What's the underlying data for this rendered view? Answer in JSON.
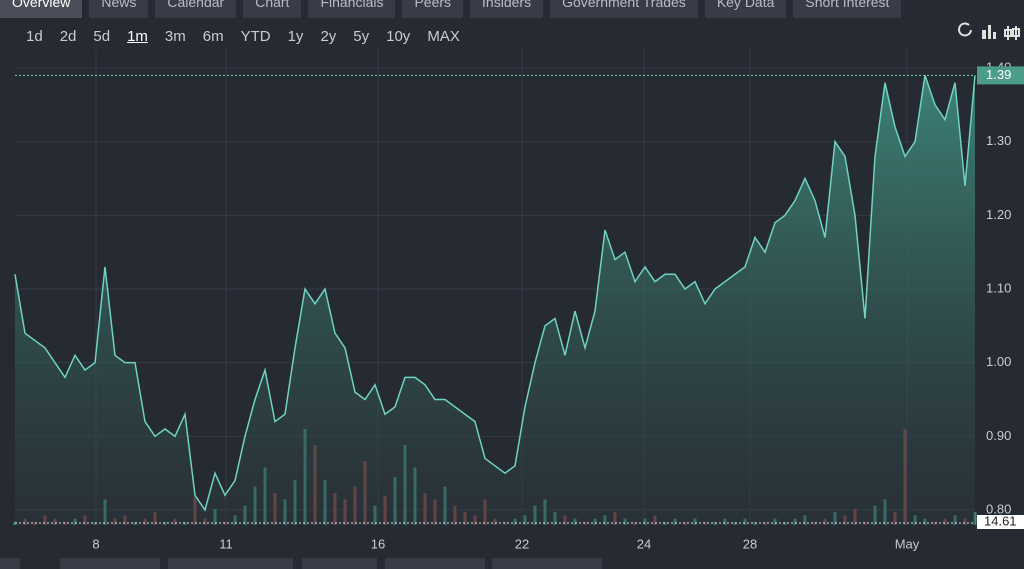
{
  "tabs": [
    "Overview",
    "News",
    "Calendar",
    "Chart",
    "Financials",
    "Peers",
    "Insiders",
    "Government Trades",
    "Key Data",
    "Short Interest"
  ],
  "ranges": [
    "1d",
    "2d",
    "5d",
    "1m",
    "3m",
    "6m",
    "YTD",
    "1y",
    "2y",
    "5y",
    "10y",
    "MAX"
  ],
  "selected_range": "1m",
  "chart_data": {
    "type": "line",
    "x": [
      0,
      1,
      2,
      3,
      4,
      5,
      6,
      7,
      8,
      9,
      10,
      11,
      12,
      13,
      14,
      15,
      16,
      17,
      18,
      19,
      20,
      21,
      22,
      23,
      24,
      25,
      26,
      27,
      28,
      29,
      30,
      31,
      32,
      33,
      34,
      35,
      36,
      37,
      38,
      39,
      40,
      41,
      42,
      43,
      44,
      45,
      46,
      47,
      48,
      49,
      50,
      51,
      52,
      53,
      54,
      55,
      56,
      57,
      58,
      59,
      60,
      61,
      62,
      63,
      64,
      65,
      66,
      67,
      68,
      69,
      70,
      71,
      72,
      73,
      74,
      75,
      76,
      77,
      78,
      79,
      80,
      81,
      82,
      83,
      84,
      85,
      86,
      87,
      88,
      89,
      90,
      91,
      92,
      93,
      94,
      95,
      96
    ],
    "series": [
      {
        "name": "Price",
        "color": "#6fd3bf",
        "values": [
          1.12,
          1.04,
          1.03,
          1.02,
          1.0,
          0.98,
          1.01,
          0.99,
          1.0,
          1.13,
          1.01,
          1.0,
          1.0,
          0.92,
          0.9,
          0.91,
          0.9,
          0.93,
          0.82,
          0.8,
          0.85,
          0.82,
          0.84,
          0.9,
          0.95,
          0.99,
          0.92,
          0.93,
          1.02,
          1.1,
          1.08,
          1.1,
          1.04,
          1.02,
          0.96,
          0.95,
          0.97,
          0.93,
          0.94,
          0.98,
          0.98,
          0.97,
          0.95,
          0.95,
          0.94,
          0.93,
          0.92,
          0.87,
          0.86,
          0.85,
          0.86,
          0.94,
          1.0,
          1.05,
          1.06,
          1.01,
          1.07,
          1.02,
          1.07,
          1.18,
          1.14,
          1.15,
          1.11,
          1.13,
          1.11,
          1.12,
          1.12,
          1.1,
          1.11,
          1.08,
          1.1,
          1.11,
          1.12,
          1.13,
          1.17,
          1.15,
          1.19,
          1.2,
          1.22,
          1.25,
          1.22,
          1.17,
          1.3,
          1.28,
          1.2,
          1.06,
          1.28,
          1.38,
          1.32,
          1.28,
          1.3,
          1.39,
          1.35,
          1.33,
          1.38,
          1.24,
          1.39
        ]
      },
      {
        "name": "Volume",
        "values": [
          1,
          2,
          1,
          3,
          2,
          1,
          2,
          3,
          1,
          8,
          2,
          3,
          1,
          2,
          4,
          1,
          2,
          1,
          9,
          2,
          5,
          1,
          3,
          6,
          12,
          18,
          10,
          8,
          14,
          30,
          25,
          14,
          10,
          8,
          12,
          20,
          6,
          9,
          15,
          25,
          18,
          10,
          8,
          12,
          6,
          4,
          3,
          8,
          2,
          1,
          2,
          3,
          6,
          8,
          4,
          3,
          2,
          1,
          2,
          3,
          4,
          2,
          1,
          2,
          3,
          1,
          2,
          1,
          2,
          1,
          1,
          2,
          1,
          2,
          1,
          1,
          2,
          1,
          2,
          3,
          1,
          2,
          4,
          3,
          5,
          1,
          6,
          8,
          4,
          30,
          3,
          2,
          1,
          2,
          3,
          2,
          4
        ]
      }
    ],
    "xlim": [
      0,
      96
    ],
    "ylim": [
      0.8,
      1.4
    ],
    "xticks": [
      {
        "value": 8.1,
        "label": "8"
      },
      {
        "value": 21.1,
        "label": "11"
      },
      {
        "value": 36.3,
        "label": "16"
      },
      {
        "value": 50.7,
        "label": "22"
      },
      {
        "value": 62.9,
        "label": "24"
      },
      {
        "value": 73.5,
        "label": "28"
      },
      {
        "value": 89.2,
        "label": "May"
      }
    ],
    "yticks": [
      {
        "value": 0.8,
        "label": "0.80"
      },
      {
        "value": 0.9,
        "label": "0.90"
      },
      {
        "value": 1.0,
        "label": "1.00"
      },
      {
        "value": 1.1,
        "label": "1.10"
      },
      {
        "value": 1.2,
        "label": "1.20"
      },
      {
        "value": 1.3,
        "label": "1.30"
      },
      {
        "value": 1.4,
        "label": "1.40"
      }
    ],
    "y2lim": [
      0,
      100
    ],
    "last_price": 1.39,
    "last_volume": 14.61,
    "grid": true
  }
}
